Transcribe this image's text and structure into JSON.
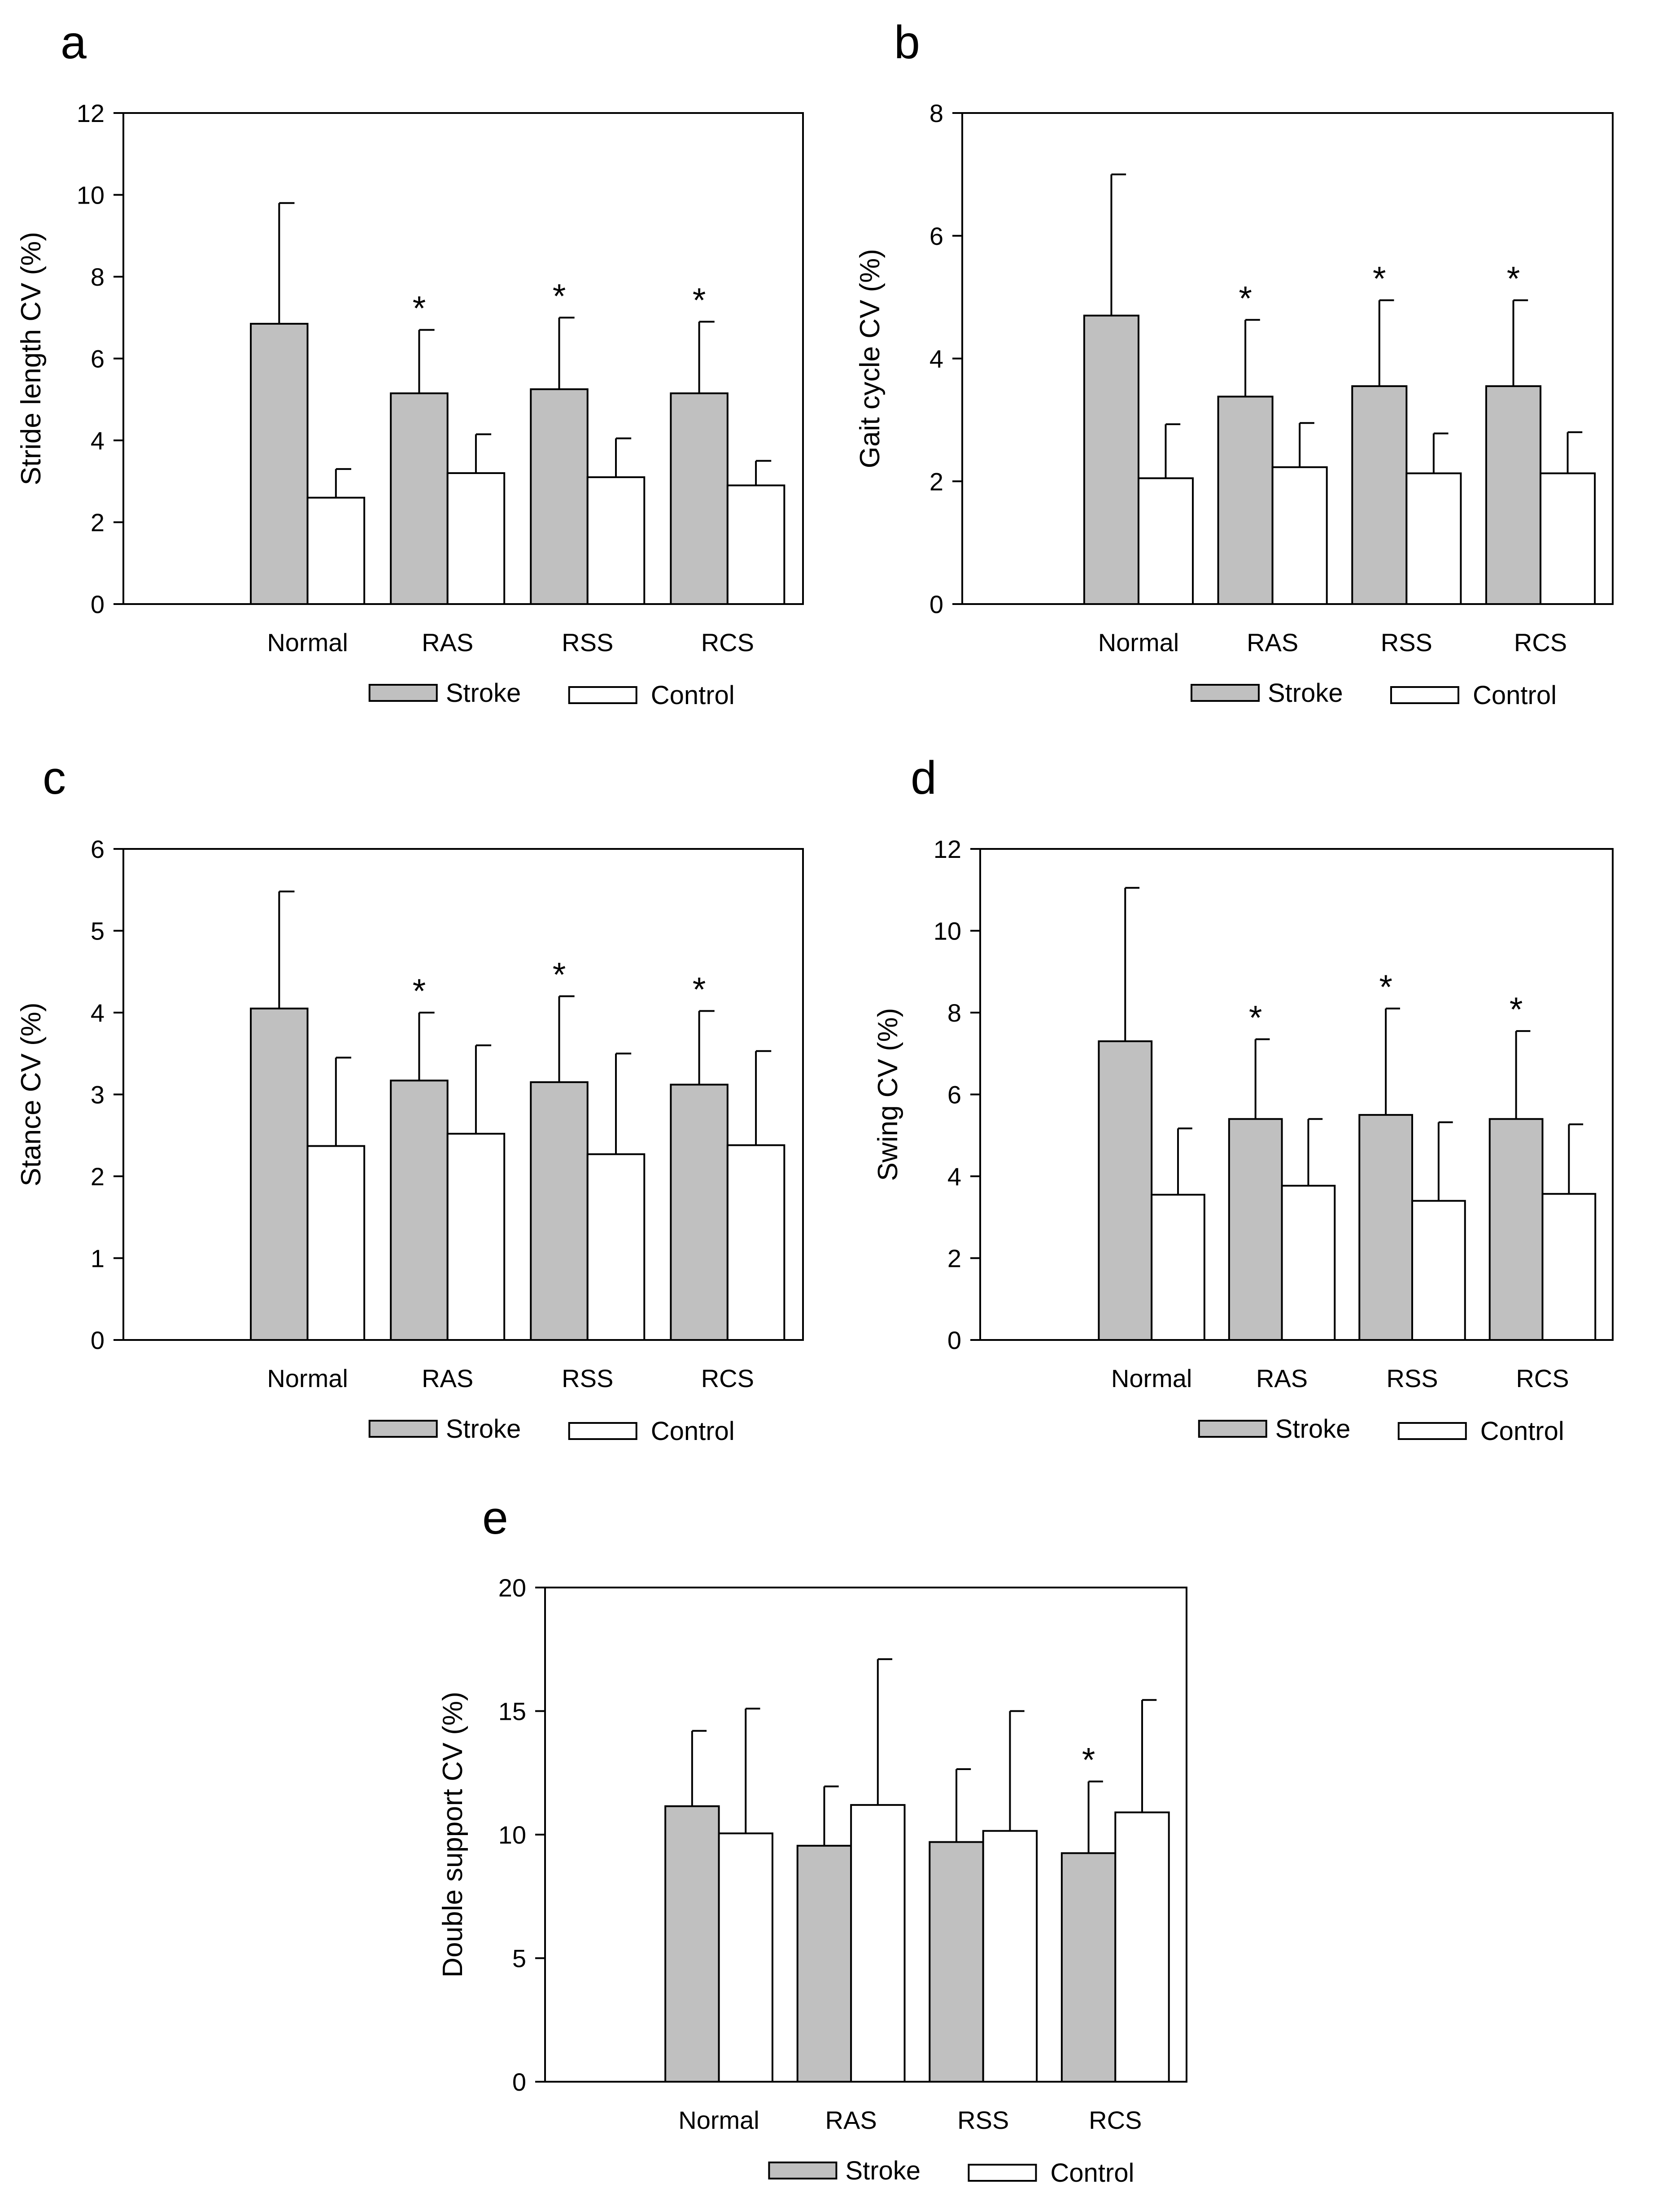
{
  "colors": {
    "stroke_bar": "#c0c0c0",
    "control_bar": "#ffffff",
    "line": "#000000"
  },
  "chart_data": [
    {
      "panel": "a",
      "type": "bar",
      "ylabel": "Stride length CV (%)",
      "xlabel": "",
      "categories": [
        "Normal",
        "RAS",
        "RSS",
        "RCS"
      ],
      "ylim": [
        0,
        12
      ],
      "yticks": [
        0,
        2,
        4,
        6,
        8,
        10,
        12
      ],
      "legend_position": "bottom-center",
      "grid": false,
      "series": [
        {
          "name": "Stroke",
          "values": [
            6.85,
            5.15,
            5.25,
            5.15
          ],
          "errors": [
            2.95,
            1.55,
            1.75,
            1.75
          ]
        },
        {
          "name": "Control",
          "values": [
            2.6,
            3.2,
            3.1,
            2.9
          ],
          "errors": [
            0.7,
            0.95,
            0.95,
            0.6
          ]
        }
      ],
      "significance": [
        null,
        "*",
        "*",
        "*"
      ]
    },
    {
      "panel": "b",
      "type": "bar",
      "ylabel": "Gait cycle CV (%)",
      "xlabel": "",
      "categories": [
        "Normal",
        "RAS",
        "RSS",
        "RCS"
      ],
      "ylim": [
        0,
        8
      ],
      "yticks": [
        0,
        2,
        4,
        6,
        8
      ],
      "legend_position": "bottom-center",
      "grid": false,
      "series": [
        {
          "name": "Stroke",
          "values": [
            4.7,
            3.38,
            3.55,
            3.55
          ],
          "errors": [
            2.3,
            1.25,
            1.4,
            1.4
          ]
        },
        {
          "name": "Control",
          "values": [
            2.05,
            2.23,
            2.13,
            2.13
          ],
          "errors": [
            0.88,
            0.72,
            0.65,
            0.67
          ]
        }
      ],
      "significance": [
        null,
        "*",
        "*",
        "*"
      ]
    },
    {
      "panel": "c",
      "type": "bar",
      "ylabel": "Stance CV (%)",
      "xlabel": "",
      "categories": [
        "Normal",
        "RAS",
        "RSS",
        "RCS"
      ],
      "ylim": [
        0,
        6
      ],
      "yticks": [
        0,
        1,
        2,
        3,
        4,
        5,
        6
      ],
      "legend_position": "bottom-center",
      "grid": false,
      "series": [
        {
          "name": "Stroke",
          "values": [
            4.05,
            3.17,
            3.15,
            3.12
          ],
          "errors": [
            1.43,
            0.83,
            1.05,
            0.9
          ]
        },
        {
          "name": "Control",
          "values": [
            2.37,
            2.52,
            2.27,
            2.38
          ],
          "errors": [
            1.08,
            1.08,
            1.23,
            1.15
          ]
        }
      ],
      "significance": [
        null,
        "*",
        "*",
        "*"
      ]
    },
    {
      "panel": "d",
      "type": "bar",
      "ylabel": "Swing CV (%)",
      "xlabel": "",
      "categories": [
        "Normal",
        "RAS",
        "RSS",
        "RCS"
      ],
      "ylim": [
        0,
        12
      ],
      "yticks": [
        0,
        2,
        4,
        6,
        8,
        10,
        12
      ],
      "legend_position": "bottom-center",
      "grid": false,
      "series": [
        {
          "name": "Stroke",
          "values": [
            7.3,
            5.4,
            5.5,
            5.4
          ],
          "errors": [
            3.75,
            1.95,
            2.6,
            2.15
          ]
        },
        {
          "name": "Control",
          "values": [
            3.55,
            3.77,
            3.4,
            3.57
          ],
          "errors": [
            1.62,
            1.63,
            1.92,
            1.7
          ]
        }
      ],
      "significance": [
        null,
        "*",
        "*",
        "*"
      ]
    },
    {
      "panel": "e",
      "type": "bar",
      "ylabel": "Double support CV (%)",
      "xlabel": "",
      "categories": [
        "Normal",
        "RAS",
        "RSS",
        "RCS"
      ],
      "ylim": [
        0,
        20
      ],
      "yticks": [
        0,
        5,
        10,
        15,
        20
      ],
      "legend_position": "bottom-center",
      "grid": false,
      "series": [
        {
          "name": "Stroke",
          "values": [
            11.15,
            9.55,
            9.7,
            9.25
          ],
          "errors": [
            3.05,
            2.4,
            2.95,
            2.9
          ]
        },
        {
          "name": "Control",
          "values": [
            10.05,
            11.2,
            10.15,
            10.9
          ],
          "errors": [
            5.05,
            5.9,
            4.85,
            4.55
          ]
        }
      ],
      "significance": [
        null,
        null,
        null,
        "*"
      ]
    }
  ]
}
